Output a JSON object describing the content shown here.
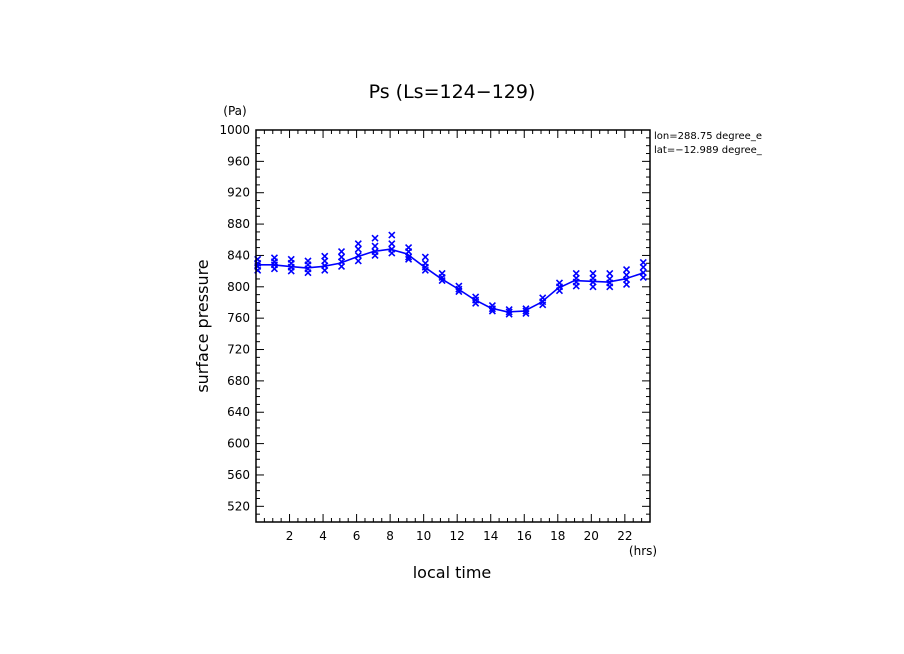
{
  "chart_data": {
    "type": "line",
    "title": "Ps (Ls=124−129)",
    "xlabel": "local time",
    "ylabel": "surface pressure",
    "x_unit": "(hrs)",
    "y_unit": "(Pa)",
    "xlim": [
      0,
      23.5
    ],
    "ylim": [
      500,
      1000
    ],
    "x_ticks": [
      "2",
      "4",
      "6",
      "8",
      "10",
      "12",
      "14",
      "16",
      "18",
      "20",
      "22"
    ],
    "y_ticks": [
      "1000",
      "960",
      "920",
      "880",
      "840",
      "800",
      "760",
      "720",
      "680",
      "640",
      "600",
      "560",
      "520"
    ],
    "annotations": [
      "lon=288.75 degree_e",
      "lat=−12.989 degree_"
    ],
    "grid": false,
    "series": [
      {
        "style": "line",
        "color": "#0000ff",
        "x": [
          0,
          1,
          2,
          3,
          4,
          5,
          6,
          7,
          8,
          9,
          10,
          11,
          12,
          13,
          14,
          15,
          16,
          17,
          18,
          19,
          20,
          21,
          22,
          23
        ],
        "y": [
          828,
          828,
          826,
          824,
          826,
          830,
          838,
          845,
          848,
          842,
          826,
          811,
          798,
          784,
          773,
          768,
          769,
          780,
          798,
          808,
          807,
          806,
          810,
          817
        ]
      },
      {
        "style": "markers",
        "marker": "x",
        "color": "#0000ff",
        "points": [
          [
            0.1,
            835
          ],
          [
            0.1,
            830
          ],
          [
            0.1,
            826
          ],
          [
            0.1,
            821
          ],
          [
            1.1,
            837
          ],
          [
            1.1,
            832
          ],
          [
            1.1,
            828
          ],
          [
            1.1,
            823
          ],
          [
            2.1,
            835
          ],
          [
            2.1,
            830
          ],
          [
            2.1,
            825
          ],
          [
            2.1,
            820
          ],
          [
            3.1,
            833
          ],
          [
            3.1,
            828
          ],
          [
            3.1,
            823
          ],
          [
            3.1,
            818
          ],
          [
            4.1,
            839
          ],
          [
            4.1,
            833
          ],
          [
            4.1,
            827
          ],
          [
            4.1,
            821
          ],
          [
            5.1,
            845
          ],
          [
            5.1,
            838
          ],
          [
            5.1,
            832
          ],
          [
            5.1,
            826
          ],
          [
            6.1,
            855
          ],
          [
            6.1,
            848
          ],
          [
            6.1,
            840
          ],
          [
            6.1,
            833
          ],
          [
            7.1,
            862
          ],
          [
            7.1,
            852
          ],
          [
            7.1,
            845
          ],
          [
            7.1,
            840
          ],
          [
            8.1,
            866
          ],
          [
            8.1,
            855
          ],
          [
            8.1,
            848
          ],
          [
            8.1,
            843
          ],
          [
            9.1,
            850
          ],
          [
            9.1,
            845
          ],
          [
            9.1,
            838
          ],
          [
            9.1,
            835
          ],
          [
            10.1,
            838
          ],
          [
            10.1,
            830
          ],
          [
            10.1,
            825
          ],
          [
            10.1,
            821
          ],
          [
            11.1,
            817
          ],
          [
            11.1,
            812
          ],
          [
            11.1,
            808
          ],
          [
            12.1,
            801
          ],
          [
            12.1,
            797
          ],
          [
            12.1,
            794
          ],
          [
            13.1,
            787
          ],
          [
            13.1,
            783
          ],
          [
            13.1,
            779
          ],
          [
            14.1,
            776
          ],
          [
            14.1,
            772
          ],
          [
            14.1,
            769
          ],
          [
            15.1,
            771
          ],
          [
            15.1,
            768
          ],
          [
            15.1,
            765
          ],
          [
            16.1,
            772
          ],
          [
            16.1,
            769
          ],
          [
            16.1,
            766
          ],
          [
            17.1,
            786
          ],
          [
            17.1,
            781
          ],
          [
            17.1,
            777
          ],
          [
            18.1,
            805
          ],
          [
            18.1,
            800
          ],
          [
            18.1,
            795
          ],
          [
            19.1,
            817
          ],
          [
            19.1,
            811
          ],
          [
            19.1,
            806
          ],
          [
            19.1,
            801
          ],
          [
            20.1,
            817
          ],
          [
            20.1,
            811
          ],
          [
            20.1,
            806
          ],
          [
            20.1,
            800
          ],
          [
            21.1,
            817
          ],
          [
            21.1,
            810
          ],
          [
            21.1,
            805
          ],
          [
            21.1,
            800
          ],
          [
            22.1,
            822
          ],
          [
            22.1,
            815
          ],
          [
            22.1,
            809
          ],
          [
            22.1,
            803
          ],
          [
            23.1,
            831
          ],
          [
            23.1,
            825
          ],
          [
            23.1,
            818
          ],
          [
            23.1,
            812
          ]
        ]
      }
    ]
  }
}
